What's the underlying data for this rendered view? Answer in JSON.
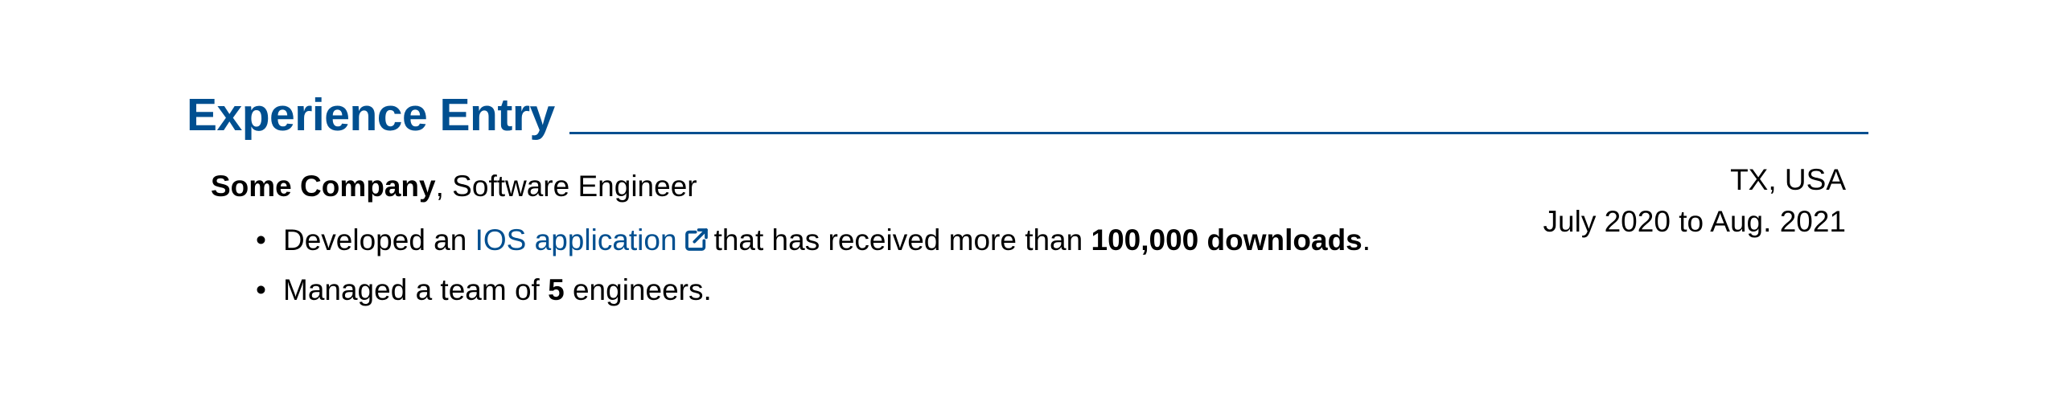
{
  "section": {
    "title": "Experience Entry"
  },
  "entry": {
    "company": "Some Company",
    "separator": ",",
    "position": " Software Engineer",
    "location": "TX, USA",
    "dates": "July 2020 to Aug. 2021",
    "bullets": [
      {
        "prefix": "Developed an ",
        "link_text": "IOS application",
        "link_icon": "external-link-icon",
        "middle": "that has received more than ",
        "bold": "100,000 downloads",
        "suffix": "."
      },
      {
        "prefix": "Managed a team of ",
        "bold": "5",
        "suffix": " engineers."
      }
    ],
    "bullet_char": "•"
  },
  "colors": {
    "accent": "#004f90",
    "text": "#000000"
  }
}
